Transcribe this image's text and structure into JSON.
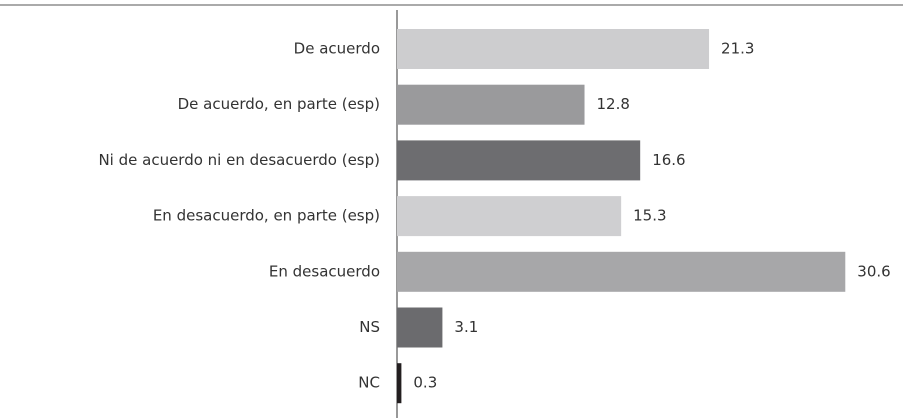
{
  "chart_data": {
    "type": "bar",
    "orientation": "horizontal",
    "categories": [
      "De acuerdo",
      "De acuerdo, en parte (esp)",
      "Ni de acuerdo ni en desacuerdo (esp)",
      "En desacuerdo, en parte (esp)",
      "En desacuerdo",
      "NS",
      "NC"
    ],
    "values": [
      21.3,
      12.8,
      16.6,
      15.3,
      30.6,
      3.1,
      0.3
    ],
    "colors": [
      "#cdcdcf",
      "#9a9a9c",
      "#6d6d70",
      "#cfcfd1",
      "#a7a7a9",
      "#6b6b6e",
      "#231f20"
    ]
  }
}
